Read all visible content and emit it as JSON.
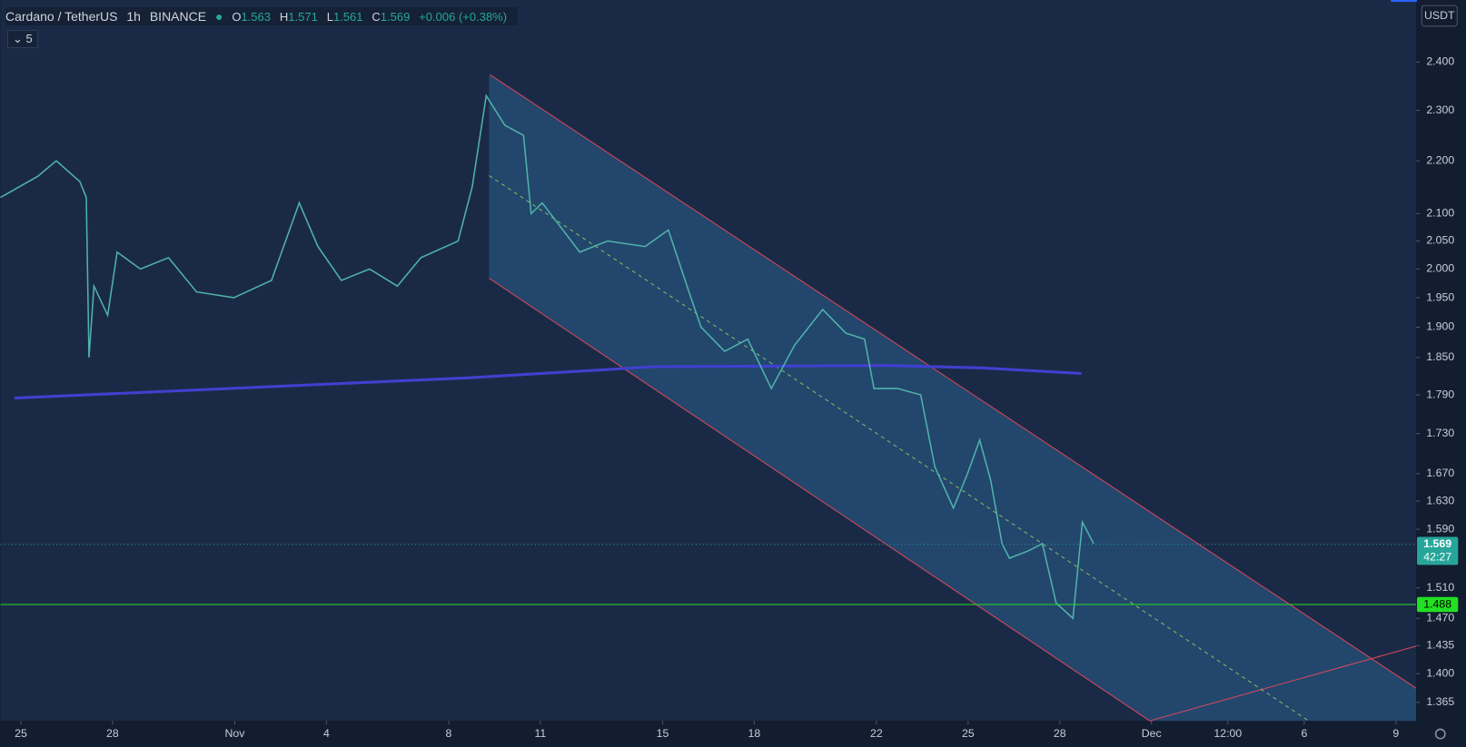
{
  "header": {
    "symbol": "Cardano / TetherUS",
    "interval": "1h",
    "exchange": "BINANCE",
    "open_label": "O",
    "open": 1.563,
    "high_label": "H",
    "high": 1.571,
    "low_label": "L",
    "low": 1.561,
    "close_label": "C",
    "close": 1.569,
    "change": "+0.006 (+0.38%)",
    "indicator_count": "5"
  },
  "currency": "USDT",
  "chart_data": {
    "type": "line",
    "log_scale": true,
    "color": "#4fb3a9",
    "x": [
      -0.67,
      0.55,
      1.16,
      1.93,
      2.14,
      2.23,
      2.39,
      2.84,
      3.15,
      3.91,
      4.83,
      5.75,
      6.97,
      8.2,
      9.11,
      9.72,
      10.49,
      11.41,
      12.32,
      13.09,
      14.31,
      14.77,
      15.23,
      15.84,
      16.45,
      16.7,
      17.06,
      18.29,
      19.2,
      20.43,
      21.19,
      21.8,
      22.26,
      23.03,
      23.79,
      24.56,
      25.32,
      26.24,
      27.0,
      27.61,
      27.92,
      28.69,
      29.45,
      29.91,
      30.52,
      30.98,
      31.38,
      31.74,
      32.11,
      32.35,
      32.97,
      33.43,
      33.88,
      34.43,
      34.74,
      35.11
    ],
    "values": [
      2.13,
      2.17,
      2.2,
      2.16,
      2.13,
      1.85,
      1.97,
      1.92,
      2.03,
      2.0,
      2.02,
      1.96,
      1.95,
      1.98,
      2.12,
      2.04,
      1.98,
      2.0,
      1.97,
      2.02,
      2.05,
      2.15,
      2.33,
      2.27,
      2.25,
      2.1,
      2.12,
      2.03,
      2.05,
      2.04,
      2.07,
      1.97,
      1.9,
      1.86,
      1.88,
      1.8,
      1.87,
      1.93,
      1.89,
      1.88,
      1.8,
      1.8,
      1.79,
      1.68,
      1.62,
      1.67,
      1.72,
      1.66,
      1.57,
      1.55,
      1.56,
      1.57,
      1.49,
      1.47,
      1.6,
      1.57
    ],
    "ma": {
      "color": "#4040d0",
      "x": [
        -0.21,
        14.62,
        20.74,
        28.38,
        31.44,
        34.71
      ],
      "values": [
        1.785,
        1.817,
        1.835,
        1.837,
        1.833,
        1.824
      ]
    },
    "xlim": [
      -0.67,
      45.66
    ],
    "ylim": [
      1.343,
      2.535
    ],
    "xticks": [
      {
        "value": 0,
        "label": "25"
      },
      {
        "value": 3,
        "label": "28"
      },
      {
        "value": 7,
        "label": "Nov"
      },
      {
        "value": 10,
        "label": "4"
      },
      {
        "value": 14,
        "label": "8"
      },
      {
        "value": 17,
        "label": "11"
      },
      {
        "value": 21,
        "label": "15"
      },
      {
        "value": 24,
        "label": "18"
      },
      {
        "value": 28,
        "label": "22"
      },
      {
        "value": 31,
        "label": "25"
      },
      {
        "value": 34,
        "label": "28"
      },
      {
        "value": 37,
        "label": "Dec"
      },
      {
        "value": 39.5,
        "label": "12:00"
      },
      {
        "value": 42,
        "label": "6"
      },
      {
        "value": 45,
        "label": "9"
      }
    ],
    "yticks": [
      {
        "value": 2.4,
        "label": "2.400"
      },
      {
        "value": 2.3,
        "label": "2.300"
      },
      {
        "value": 2.2,
        "label": "2.200"
      },
      {
        "value": 2.1,
        "label": "2.100"
      },
      {
        "value": 2.05,
        "label": "2.050"
      },
      {
        "value": 2.0,
        "label": "2.000"
      },
      {
        "value": 1.95,
        "label": "1.950"
      },
      {
        "value": 1.9,
        "label": "1.900"
      },
      {
        "value": 1.85,
        "label": "1.850"
      },
      {
        "value": 1.79,
        "label": "1.790"
      },
      {
        "value": 1.73,
        "label": "1.730"
      },
      {
        "value": 1.67,
        "label": "1.670"
      },
      {
        "value": 1.63,
        "label": "1.630"
      },
      {
        "value": 1.59,
        "label": "1.590"
      },
      {
        "value": 1.51,
        "label": "1.510"
      },
      {
        "value": 1.47,
        "label": "1.470"
      },
      {
        "value": 1.435,
        "label": "1.435"
      },
      {
        "value": 1.4,
        "label": "1.400"
      },
      {
        "value": 1.365,
        "label": "1.365"
      }
    ],
    "last_price": {
      "value": 1.569,
      "label": "1.569",
      "countdown": "42:27"
    },
    "level": {
      "value": 1.488,
      "label": "1.488",
      "color": "#22e022"
    }
  }
}
